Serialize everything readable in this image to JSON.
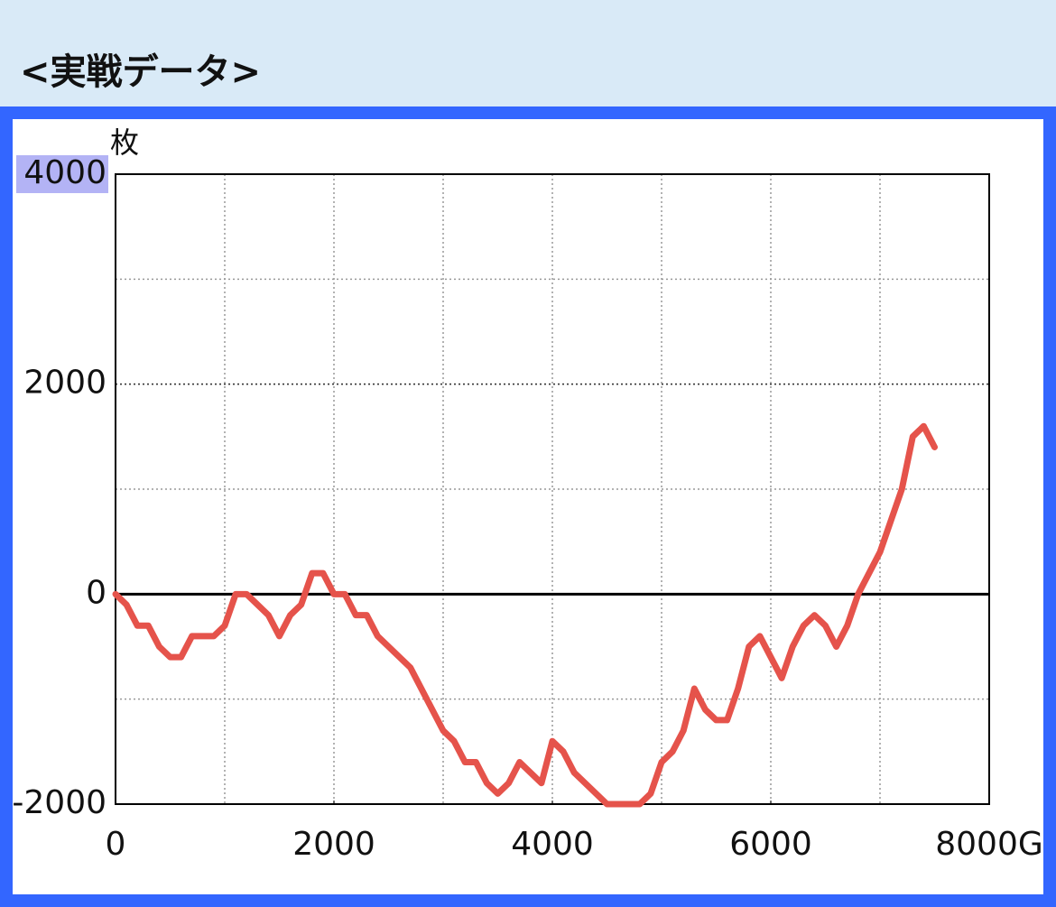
{
  "title": "<実戦データ>",
  "chart_data": {
    "type": "line",
    "y_unit": "枚",
    "x": [
      0,
      100,
      200,
      300,
      400,
      500,
      600,
      700,
      900,
      1000,
      1100,
      1200,
      1400,
      1500,
      1600,
      1700,
      1800,
      1900,
      2000,
      2100,
      2200,
      2300,
      2400,
      2700,
      3000,
      3100,
      3200,
      3300,
      3400,
      3500,
      3600,
      3700,
      3900,
      4000,
      4100,
      4200,
      4400,
      4500,
      4800,
      4900,
      5000,
      5100,
      5200,
      5300,
      5400,
      5500,
      5600,
      5700,
      5800,
      5900,
      6000,
      6100,
      6200,
      6300,
      6400,
      6500,
      6600,
      6700,
      6800,
      7000,
      7100,
      7200,
      7300,
      7400,
      7500
    ],
    "values": [
      0,
      -100,
      -300,
      -300,
      -500,
      -600,
      -600,
      -400,
      -400,
      -300,
      0,
      0,
      -200,
      -400,
      -200,
      -100,
      200,
      200,
      0,
      0,
      -200,
      -200,
      -400,
      -700,
      -1300,
      -1400,
      -1600,
      -1600,
      -1800,
      -1900,
      -1800,
      -1600,
      -1800,
      -1400,
      -1500,
      -1700,
      -1900,
      -2000,
      -2000,
      -1900,
      -1600,
      -1500,
      -1300,
      -900,
      -1100,
      -1200,
      -1200,
      -900,
      -500,
      -400,
      -600,
      -800,
      -500,
      -300,
      -200,
      -300,
      -500,
      -300,
      0,
      400,
      700,
      1000,
      1500,
      1600,
      1400
    ],
    "color": "#e5534b",
    "xlim": [
      0,
      8000
    ],
    "ylim": [
      -2000,
      4000
    ],
    "xticks": [
      0,
      2000,
      4000,
      6000,
      {
        "value": 8000,
        "label": "8000G"
      }
    ],
    "yticks": [
      -2000,
      0,
      2000,
      4000
    ],
    "xgrid": [
      1000,
      2000,
      3000,
      4000,
      5000,
      6000,
      7000
    ],
    "ygrid": [
      -1000,
      1000,
      2000,
      3000
    ],
    "grid": true
  }
}
